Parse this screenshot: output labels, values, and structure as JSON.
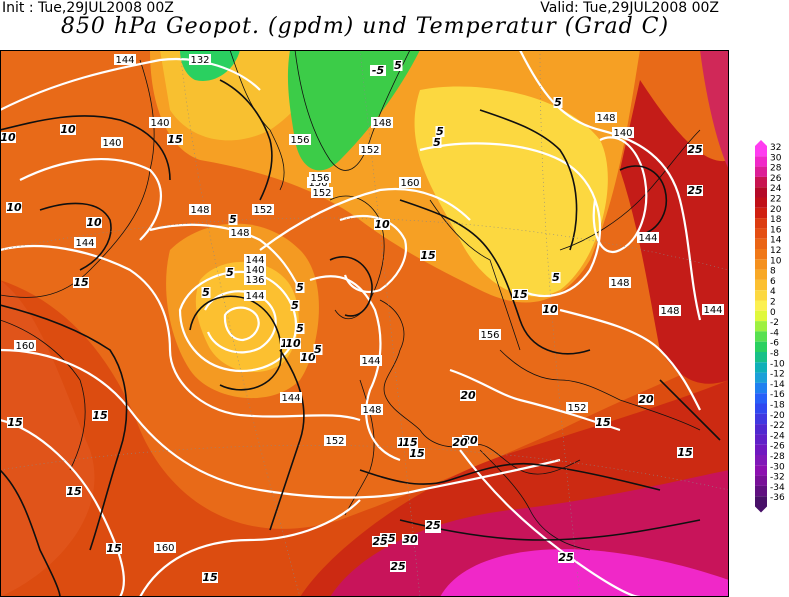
{
  "header": {
    "init": "Init : Tue,29JUL2008 00Z",
    "valid": "Valid: Tue,29JUL2008 00Z",
    "title": "850 hPa Geopot. (gpdm) und Temperatur (Grad C)"
  },
  "legend": {
    "labels": [
      "32",
      "30",
      "28",
      "26",
      "24",
      "22",
      "20",
      "18",
      "16",
      "14",
      "12",
      "10",
      "8",
      "6",
      "4",
      "2",
      "0",
      "-2",
      "-4",
      "-6",
      "-8",
      "-10",
      "-12",
      "-14",
      "-16",
      "-18",
      "-20",
      "-22",
      "-24",
      "-26",
      "-28",
      "-30",
      "-32",
      "-34",
      "-36"
    ],
    "colors": [
      "#ff3cf0",
      "#f028c8",
      "#dc1e96",
      "#c81450",
      "#b40a28",
      "#c01018",
      "#d02010",
      "#dc3c10",
      "#e44e12",
      "#ea6414",
      "#f07818",
      "#f4901e",
      "#f8a826",
      "#fcc030",
      "#fcd840",
      "#fcf050",
      "#e0f83c",
      "#9ef040",
      "#58e050",
      "#2ad060",
      "#18c088",
      "#10b0b8",
      "#1ca0d8",
      "#2080f0",
      "#2860f8",
      "#3048f0",
      "#4038e0",
      "#5028d0",
      "#6020c8",
      "#7018c0",
      "#8018b8",
      "#8c10b0",
      "#781098",
      "#601080",
      "#481068"
    ]
  },
  "map": {
    "temperature_labels": [
      "10",
      "10",
      "15",
      "10",
      "10",
      "5",
      "10",
      "15",
      "5",
      "5",
      "10",
      "10",
      "5",
      "5",
      "5",
      "10",
      "15",
      "15",
      "15",
      "20",
      "20",
      "25",
      "25",
      "25",
      "30",
      "25",
      "20",
      "15",
      "15",
      "15",
      "15",
      "15",
      "15",
      "20",
      "25",
      "25",
      "25",
      "15",
      "15",
      "5",
      "5",
      "5",
      "-5",
      "5",
      "0",
      "-5",
      "5",
      "5",
      "5",
      "10",
      "15",
      "20",
      "25",
      "25"
    ],
    "geopotential_labels": [
      "132",
      "144",
      "140",
      "140",
      "156",
      "148",
      "152",
      "148",
      "144",
      "140",
      "136",
      "144",
      "148",
      "144",
      "152",
      "156",
      "152",
      "160",
      "148",
      "156",
      "144",
      "148",
      "152",
      "140",
      "144",
      "144",
      "148",
      "148",
      "144",
      "152",
      "160",
      "160",
      "156"
    ]
  }
}
